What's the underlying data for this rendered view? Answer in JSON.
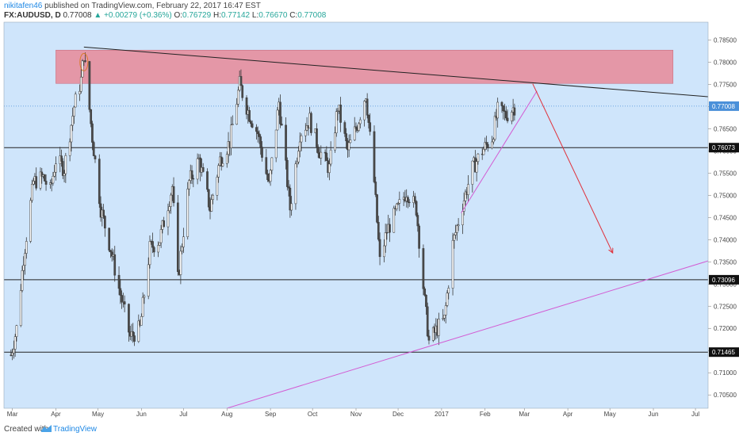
{
  "header": {
    "author": "nikitafen46",
    "published_text": "published on TradingView.com, February 22, 2017 16:47 EST",
    "symbol": "FX:AUDUSD, D",
    "last": "0.77008",
    "change": "▲ +0.00279 (+0.36%)",
    "open_label": "O:",
    "open": "0.76729",
    "high_label": "H:",
    "high": "0.77142",
    "low_label": "L:",
    "low": "0.76670",
    "close_label": "C:",
    "close": "0.77008"
  },
  "footer": {
    "created_with": "Created with",
    "brand": "TradingView"
  },
  "colors": {
    "background": "#cfe5fb",
    "up_candle": "#ffffff",
    "down_candle": "#4a4a4a",
    "wick": "#3a3a3a",
    "resistance_zone": "#e88a98",
    "trendline": "#222222",
    "support_line": "#d35cd3",
    "arrow": "#e0303a",
    "last_price_line": "#4a90d9"
  },
  "chart_data": {
    "type": "candlestick",
    "title": "",
    "x_axis": {
      "ticks": [
        "Mar",
        "Apr",
        "May",
        "Jun",
        "Jul",
        "Aug",
        "Sep",
        "Oct",
        "Nov",
        "Dec",
        "2017",
        "Feb",
        "Mar",
        "Apr",
        "May",
        "Jun",
        "Jul"
      ]
    },
    "y_axis": {
      "range": [
        0.702,
        0.789
      ],
      "ticks": [
        "0.78500",
        "0.78000",
        "0.77500",
        "0.77000",
        "0.76500",
        "0.76000",
        "0.75500",
        "0.75000",
        "0.74500",
        "0.74000",
        "0.73500",
        "0.73000",
        "0.72500",
        "0.72000",
        "0.71500",
        "0.71000",
        "0.70500"
      ]
    },
    "horizontal_levels": [
      {
        "value": 0.76073,
        "label": "0.76073"
      },
      {
        "value": 0.73096,
        "label": "0.73096"
      },
      {
        "value": 0.71465,
        "label": "0.71465"
      }
    ],
    "last_price": {
      "value": 0.77008,
      "label": "0.77008"
    },
    "resistance_zone": {
      "from_date": "2016-04-01",
      "to_date": "2017-06-15",
      "low": 0.7752,
      "high": 0.7827
    },
    "trendlines": [
      {
        "name": "descending-resistance",
        "from": [
          "2016-04-21",
          0.7834
        ],
        "to": [
          "2017-07-10",
          0.7722
        ]
      },
      {
        "name": "long-support",
        "from": [
          "2016-08-01",
          0.702
        ],
        "to": [
          "2017-07-10",
          0.7352
        ]
      },
      {
        "name": "short-support",
        "from": [
          "2017-01-15",
          0.746
        ],
        "to": [
          "2017-03-10",
          0.7735
        ]
      }
    ],
    "projection_arrow": {
      "from": [
        "2017-03-07",
        0.7751
      ],
      "to": [
        "2017-05-03",
        0.737
      ]
    },
    "price_path": [
      [
        "2016-02-29",
        0.714
      ],
      [
        "2016-03-04",
        0.72
      ],
      [
        "2016-03-09",
        0.736
      ],
      [
        "2016-03-16",
        0.753
      ],
      [
        "2016-03-23",
        0.754
      ],
      [
        "2016-03-28",
        0.751
      ],
      [
        "2016-04-01",
        0.758
      ],
      [
        "2016-04-07",
        0.756
      ],
      [
        "2016-04-14",
        0.77
      ],
      [
        "2016-04-19",
        0.776
      ],
      [
        "2016-04-21",
        0.782
      ],
      [
        "2016-04-27",
        0.763
      ],
      [
        "2016-05-03",
        0.747
      ],
      [
        "2016-05-10",
        0.738
      ],
      [
        "2016-05-16",
        0.729
      ],
      [
        "2016-05-24",
        0.718
      ],
      [
        "2016-05-31",
        0.72
      ],
      [
        "2016-06-07",
        0.738
      ],
      [
        "2016-06-14",
        0.74
      ],
      [
        "2016-06-23",
        0.752
      ],
      [
        "2016-06-27",
        0.731
      ],
      [
        "2016-07-05",
        0.753
      ],
      [
        "2016-07-12",
        0.758
      ],
      [
        "2016-07-20",
        0.747
      ],
      [
        "2016-07-27",
        0.758
      ],
      [
        "2016-08-03",
        0.762
      ],
      [
        "2016-08-10",
        0.775
      ],
      [
        "2016-08-16",
        0.769
      ],
      [
        "2016-08-23",
        0.764
      ],
      [
        "2016-08-31",
        0.752
      ],
      [
        "2016-09-07",
        0.771
      ],
      [
        "2016-09-15",
        0.747
      ],
      [
        "2016-09-22",
        0.764
      ],
      [
        "2016-09-29",
        0.767
      ],
      [
        "2016-10-06",
        0.76
      ],
      [
        "2016-10-13",
        0.756
      ],
      [
        "2016-10-19",
        0.77
      ],
      [
        "2016-10-26",
        0.76
      ],
      [
        "2016-11-02",
        0.766
      ],
      [
        "2016-11-08",
        0.773
      ],
      [
        "2016-11-14",
        0.753
      ],
      [
        "2016-11-18",
        0.735
      ],
      [
        "2016-11-23",
        0.742
      ],
      [
        "2016-12-01",
        0.747
      ],
      [
        "2016-12-07",
        0.751
      ],
      [
        "2016-12-14",
        0.747
      ],
      [
        "2016-12-20",
        0.726
      ],
      [
        "2016-12-23",
        0.717
      ],
      [
        "2016-12-29",
        0.72
      ],
      [
        "2017-01-03",
        0.722
      ],
      [
        "2017-01-09",
        0.739
      ],
      [
        "2017-01-16",
        0.748
      ],
      [
        "2017-01-23",
        0.756
      ],
      [
        "2017-01-30",
        0.76
      ],
      [
        "2017-02-06",
        0.763
      ],
      [
        "2017-02-10",
        0.769
      ],
      [
        "2017-02-16",
        0.768
      ],
      [
        "2017-02-22",
        0.77
      ]
    ]
  }
}
